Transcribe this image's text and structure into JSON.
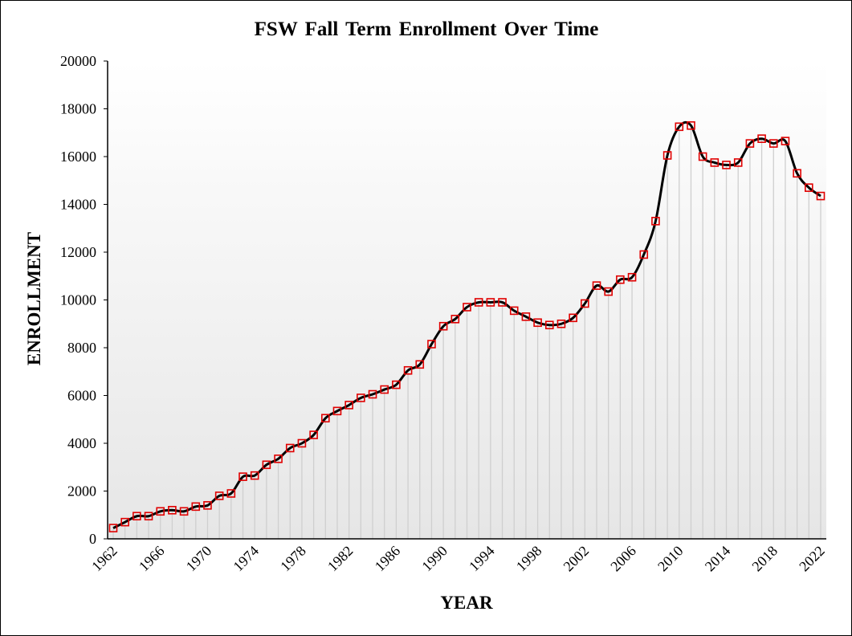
{
  "chart_data": {
    "type": "line",
    "title": "FSW Fall Term Enrollment Over Time",
    "xlabel": "YEAR",
    "ylabel": "ENROLLMENT",
    "ylim": [
      0,
      20000
    ],
    "yticks": [
      0,
      2000,
      4000,
      6000,
      8000,
      10000,
      12000,
      14000,
      16000,
      18000,
      20000
    ],
    "xticks": [
      1962,
      1966,
      1970,
      1974,
      1978,
      1982,
      1986,
      1990,
      1994,
      1998,
      2002,
      2006,
      2010,
      2014,
      2018,
      2022
    ],
    "xlim": [
      1962,
      2022
    ],
    "legend": "none",
    "grid": false,
    "series": [
      {
        "name": "Enrollment",
        "line_color": "#000000",
        "marker_color": "#e00000",
        "x": [
          1962,
          1963,
          1964,
          1965,
          1966,
          1967,
          1968,
          1969,
          1970,
          1971,
          1972,
          1973,
          1974,
          1975,
          1976,
          1977,
          1978,
          1979,
          1980,
          1981,
          1982,
          1983,
          1984,
          1985,
          1986,
          1987,
          1988,
          1989,
          1990,
          1991,
          1992,
          1993,
          1994,
          1995,
          1996,
          1997,
          1998,
          1999,
          2000,
          2001,
          2002,
          2003,
          2004,
          2005,
          2006,
          2007,
          2008,
          2009,
          2010,
          2011,
          2012,
          2013,
          2014,
          2015,
          2016,
          2017,
          2018,
          2019,
          2020,
          2021,
          2022
        ],
        "values": [
          450,
          700,
          950,
          950,
          1150,
          1200,
          1150,
          1350,
          1400,
          1800,
          1900,
          2600,
          2650,
          3100,
          3350,
          3800,
          4000,
          4350,
          5050,
          5350,
          5600,
          5900,
          6050,
          6250,
          6450,
          7050,
          7300,
          8150,
          8900,
          9200,
          9700,
          9900,
          9900,
          9900,
          9550,
          9300,
          9050,
          8950,
          9000,
          9250,
          9850,
          10600,
          10350,
          10850,
          10950,
          11900,
          13300,
          16050,
          17250,
          17300,
          16000,
          15750,
          15650,
          15750,
          16550,
          16750,
          16550,
          16650,
          15300,
          14700,
          14350
        ]
      }
    ]
  }
}
